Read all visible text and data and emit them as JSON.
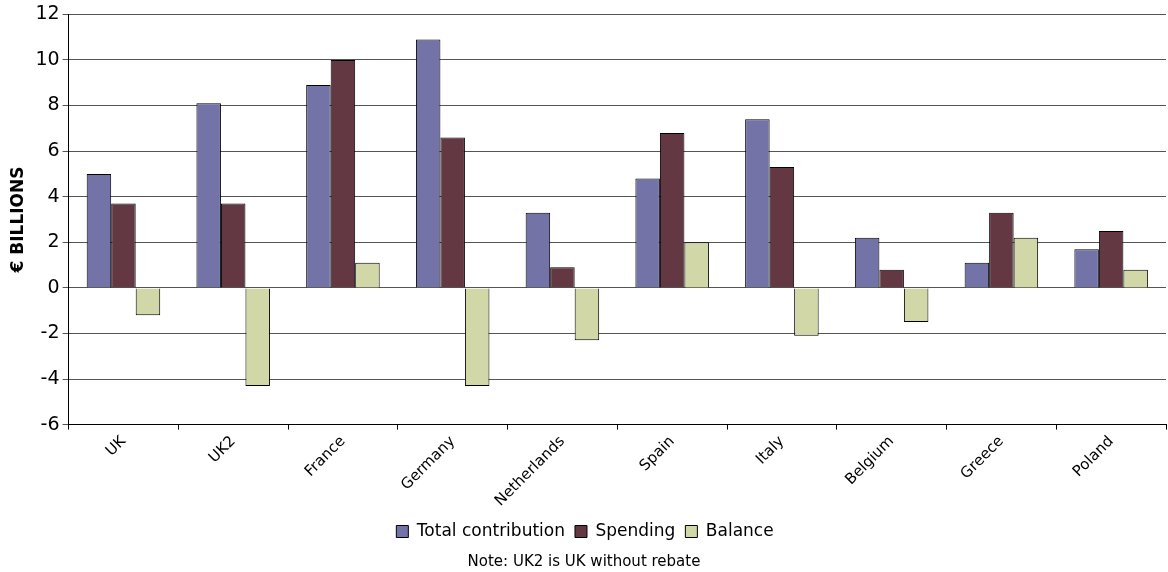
{
  "chart_data": {
    "type": "bar",
    "ylabel": "€ BILLIONS",
    "categories": [
      "UK",
      "UK2",
      "France",
      "Germany",
      "Netherlands",
      "Spain",
      "Italy",
      "Belgium",
      "Greece",
      "Poland"
    ],
    "series": [
      {
        "name": "Total contribution",
        "color": "#7373a8",
        "values": [
          5.0,
          8.1,
          8.9,
          10.9,
          3.3,
          4.8,
          7.4,
          2.2,
          1.1,
          1.7
        ]
      },
      {
        "name": "Spending",
        "color": "#633842",
        "values": [
          3.7,
          3.7,
          10.0,
          6.6,
          0.9,
          6.8,
          5.3,
          0.8,
          3.3,
          2.5
        ]
      },
      {
        "name": "Balance",
        "color": "#d2d7a8",
        "values": [
          -1.2,
          -4.3,
          1.1,
          -4.3,
          -2.3,
          2.0,
          -2.1,
          -1.5,
          2.2,
          0.8
        ]
      }
    ],
    "ylim": [
      -6,
      12
    ],
    "yticks": [
      -6,
      -4,
      -2,
      0,
      2,
      4,
      6,
      8,
      10,
      12
    ],
    "grid": "y",
    "legend": "bottom",
    "annotations": [
      "Note: UK2 is UK without rebate"
    ]
  }
}
